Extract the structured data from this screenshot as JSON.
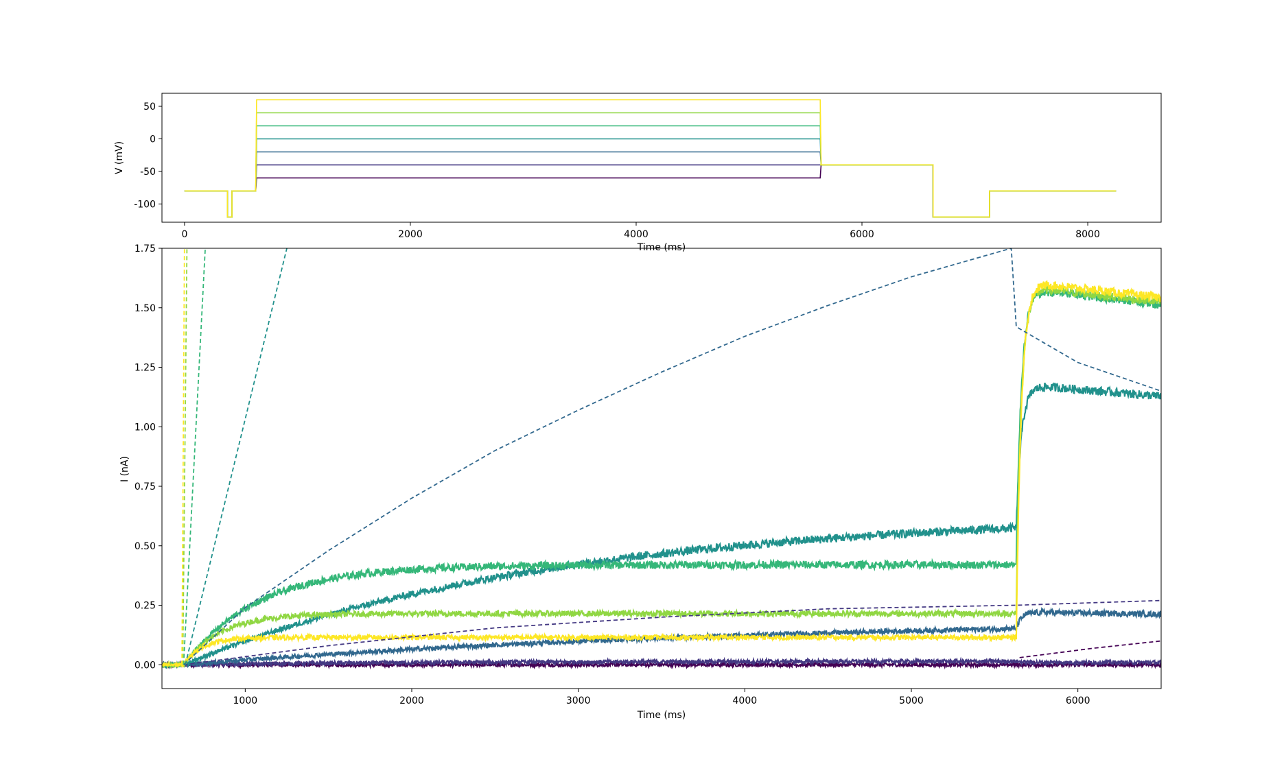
{
  "chart_data": [
    {
      "type": "line",
      "xlabel": "Time (ms)",
      "ylabel": "V (mV)",
      "xlim": [
        -200,
        8650
      ],
      "ylim": [
        -128,
        70
      ],
      "xticks": [
        0,
        2000,
        4000,
        6000,
        8000
      ],
      "yticks": [
        50,
        0,
        -50,
        -100
      ],
      "protocol_points": {
        "pre": [
          [
            0,
            -80
          ],
          [
            380,
            -80
          ],
          [
            380,
            -120
          ],
          [
            420,
            -120
          ],
          [
            420,
            -80
          ],
          [
            630,
            -80
          ]
        ],
        "step_start": 630,
        "step_end": 5630,
        "tail": [
          [
            5630,
            -40
          ],
          [
            6630,
            -40
          ],
          [
            6630,
            -120
          ],
          [
            7130,
            -120
          ],
          [
            7130,
            -80
          ],
          [
            8250,
            -80
          ]
        ]
      },
      "series": [
        {
          "step_mV": -60,
          "color": "#440154"
        },
        {
          "step_mV": -40,
          "color": "#443983"
        },
        {
          "step_mV": -20,
          "color": "#31688e"
        },
        {
          "step_mV": 0,
          "color": "#21918c"
        },
        {
          "step_mV": 20,
          "color": "#35b779"
        },
        {
          "step_mV": 40,
          "color": "#90d743"
        },
        {
          "step_mV": 60,
          "color": "#fde725"
        }
      ]
    },
    {
      "type": "line",
      "xlabel": "Time (ms)",
      "ylabel": "I (nA)",
      "xlim": [
        500,
        6500
      ],
      "ylim": [
        -0.1,
        1.75
      ],
      "xticks": [
        1000,
        2000,
        3000,
        4000,
        5000,
        6000
      ],
      "yticks": [
        0.0,
        0.25,
        0.5,
        0.75,
        1.0,
        1.25,
        1.5,
        1.75
      ],
      "step_start": 630,
      "step_end": 5630,
      "series_measured": [
        {
          "step_mV": -60,
          "color": "#440154",
          "plateau": 0.0,
          "tau": 800,
          "tail": 0.0
        },
        {
          "step_mV": -40,
          "color": "#443983",
          "plateau": 0.015,
          "tau": 1500,
          "tail": 0.01
        },
        {
          "step_mV": -20,
          "color": "#31688e",
          "plateau": 0.2,
          "tau": 3500,
          "tail": 0.22
        },
        {
          "step_mV": 0,
          "color": "#21918c",
          "plateau": 0.64,
          "tau": 2200,
          "tail": 1.17
        },
        {
          "step_mV": 20,
          "color": "#35b779",
          "plateau": 0.42,
          "tau": 450,
          "tail": 1.57
        },
        {
          "step_mV": 40,
          "color": "#90d743",
          "plateau": 0.215,
          "tau": 220,
          "tail": 1.58
        },
        {
          "step_mV": 60,
          "color": "#fde725",
          "plateau": 0.115,
          "tau": 110,
          "tail": 1.6
        }
      ],
      "series_model": [
        {
          "step_mV": -60,
          "color": "#440154",
          "points": [
            [
              5650,
              0.03
            ],
            [
              6100,
              0.07
            ],
            [
              6500,
              0.1
            ]
          ]
        },
        {
          "step_mV": -40,
          "color": "#443983",
          "points": [
            [
              630,
              0.0
            ],
            [
              1500,
              0.08
            ],
            [
              2500,
              0.155
            ],
            [
              3500,
              0.2
            ],
            [
              4500,
              0.235
            ],
            [
              5630,
              0.25
            ],
            [
              6500,
              0.27
            ]
          ]
        },
        {
          "step_mV": -20,
          "color": "#31688e",
          "points": [
            [
              630,
              0.0
            ],
            [
              1000,
              0.24
            ],
            [
              1500,
              0.48
            ],
            [
              2000,
              0.7
            ],
            [
              2500,
              0.9
            ],
            [
              3000,
              1.07
            ],
            [
              3500,
              1.23
            ],
            [
              4000,
              1.38
            ],
            [
              4500,
              1.51
            ],
            [
              4750,
              1.57
            ],
            [
              5000,
              1.63
            ],
            [
              5600,
              1.75
            ],
            [
              5630,
              1.42
            ],
            [
              6000,
              1.27
            ],
            [
              6500,
              1.15
            ]
          ]
        },
        {
          "step_mV": 0,
          "color": "#21918c",
          "points": [
            [
              640,
              0.0
            ],
            [
              1250,
              1.75
            ]
          ]
        },
        {
          "step_mV": 20,
          "color": "#35b779",
          "points": [
            [
              630,
              0.0
            ],
            [
              760,
              1.75
            ]
          ]
        },
        {
          "step_mV": 40,
          "color": "#90d743",
          "points": [
            [
              625,
              0.0
            ],
            [
              650,
              1.75
            ]
          ]
        },
        {
          "step_mV": 60,
          "color": "#fde725",
          "points": [
            [
              620,
              0.0
            ],
            [
              635,
              1.75
            ]
          ]
        }
      ]
    }
  ]
}
